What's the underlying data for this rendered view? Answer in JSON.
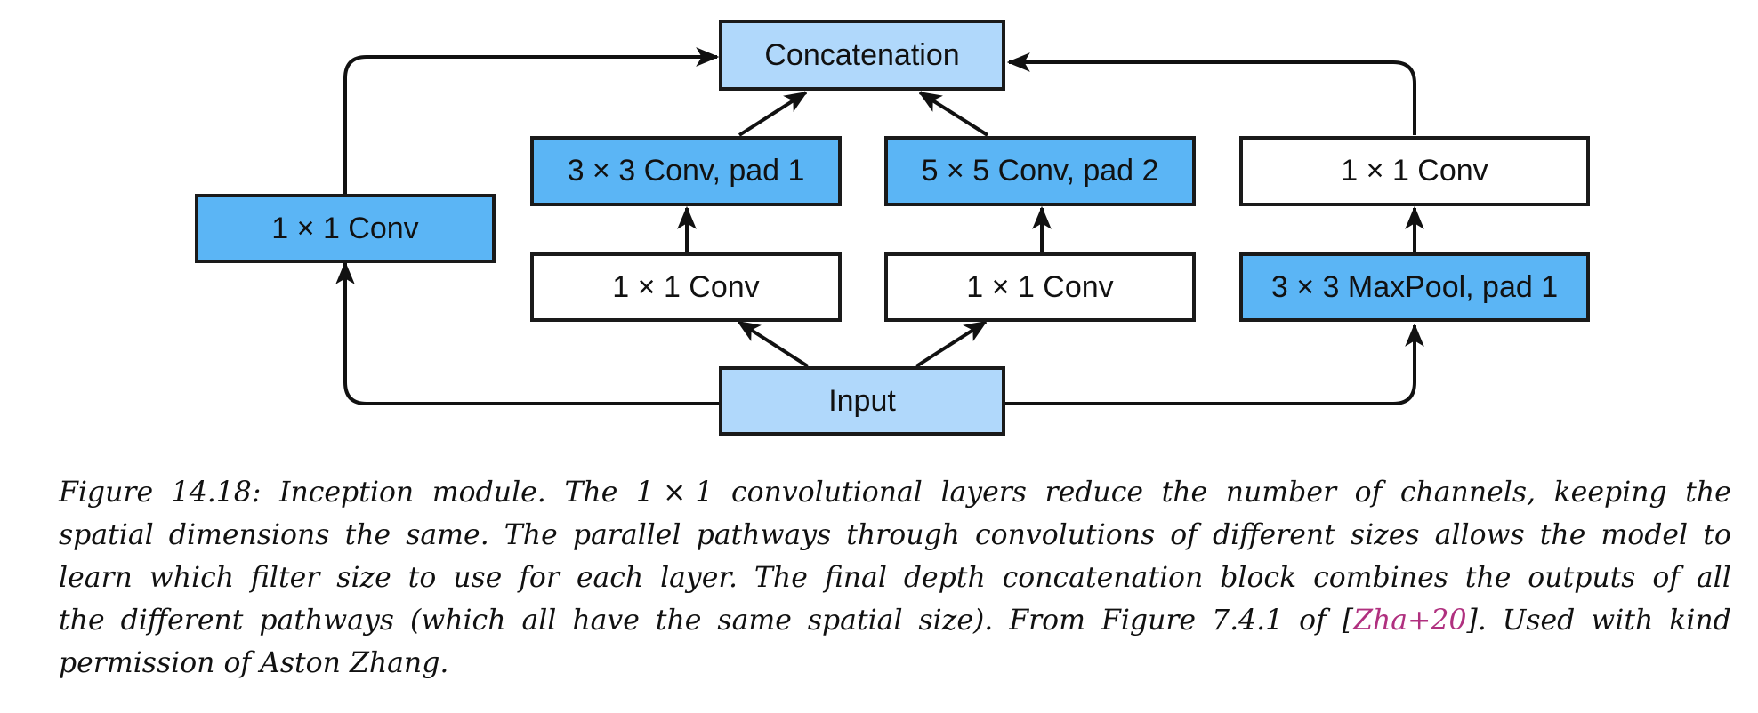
{
  "nodes": {
    "concatenation": "Concatenation",
    "input": "Input",
    "conv1x1_left": "1 × 1 Conv",
    "conv3x3_pad1": "3 × 3 Conv, pad 1",
    "conv1x1_reduce_a": "1 × 1 Conv",
    "conv5x5_pad2": "5 × 5 Conv, pad 2",
    "conv1x1_reduce_b": "1 × 1 Conv",
    "conv1x1_right": "1 × 1 Conv",
    "maxpool3x3_pad1": "3 × 3 MaxPool, pad 1"
  },
  "colors": {
    "dark_blue": "#5bb5f5",
    "light_blue": "#b0d8fb",
    "white": "#ffffff",
    "edge": "#111111",
    "citation": "#b0307f"
  },
  "caption": {
    "line1": [
      "Figure",
      "14.18:",
      "Inception",
      "module.",
      "The",
      "1 × 1",
      "convolutional",
      "layers",
      "reduce",
      "the",
      "number",
      "of",
      "channels,",
      "keeping",
      "the"
    ],
    "line2": [
      "spatial",
      "dimensions",
      "the",
      "same.",
      "The",
      "parallel",
      "pathways",
      "through",
      "convolutions",
      "of",
      "different",
      "sizes",
      "allows",
      "the",
      "model",
      "to"
    ],
    "line3": [
      "learn",
      "which",
      "filter",
      "size",
      "to",
      "use",
      "for",
      "each",
      "layer.",
      "The",
      "final",
      "depth",
      "concatenation",
      "block",
      "combines",
      "the",
      "outputs",
      "of",
      "all"
    ],
    "line4_before": [
      "the",
      "different",
      "pathways",
      "(which",
      "all",
      "have",
      "the",
      "same",
      "spatial",
      "size).",
      "From",
      "Figure",
      "7.4.1",
      "of"
    ],
    "line4_cite_open": "[",
    "line4_cite": "Zha+20",
    "line4_cite_close": "].",
    "line4_after": [
      "Used",
      "with",
      "kind"
    ],
    "line5": "permission of Aston Zhang."
  }
}
